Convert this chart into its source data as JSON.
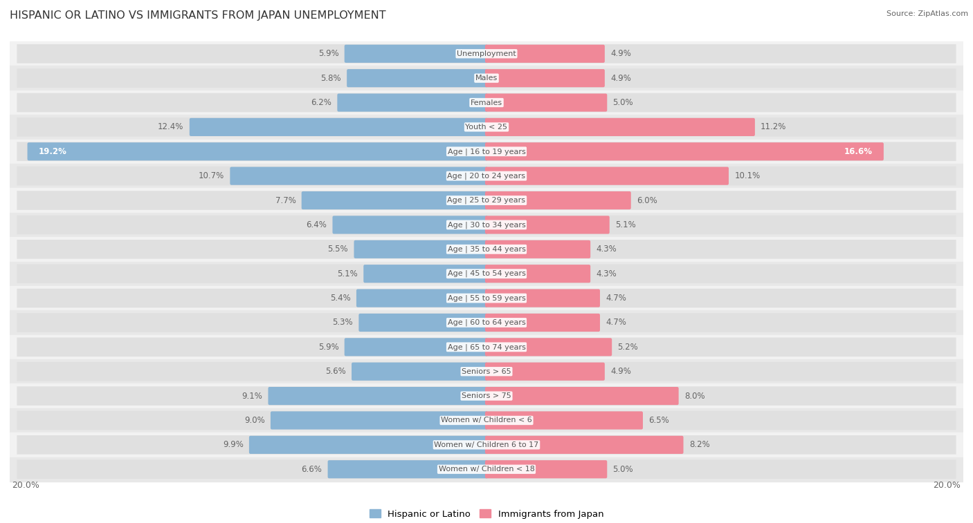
{
  "title": "HISPANIC OR LATINO VS IMMIGRANTS FROM JAPAN UNEMPLOYMENT",
  "source": "Source: ZipAtlas.com",
  "categories": [
    "Unemployment",
    "Males",
    "Females",
    "Youth < 25",
    "Age | 16 to 19 years",
    "Age | 20 to 24 years",
    "Age | 25 to 29 years",
    "Age | 30 to 34 years",
    "Age | 35 to 44 years",
    "Age | 45 to 54 years",
    "Age | 55 to 59 years",
    "Age | 60 to 64 years",
    "Age | 65 to 74 years",
    "Seniors > 65",
    "Seniors > 75",
    "Women w/ Children < 6",
    "Women w/ Children 6 to 17",
    "Women w/ Children < 18"
  ],
  "hispanic_values": [
    5.9,
    5.8,
    6.2,
    12.4,
    19.2,
    10.7,
    7.7,
    6.4,
    5.5,
    5.1,
    5.4,
    5.3,
    5.9,
    5.6,
    9.1,
    9.0,
    9.9,
    6.6
  ],
  "japan_values": [
    4.9,
    4.9,
    5.0,
    11.2,
    16.6,
    10.1,
    6.0,
    5.1,
    4.3,
    4.3,
    4.7,
    4.7,
    5.2,
    4.9,
    8.0,
    6.5,
    8.2,
    5.0
  ],
  "hispanic_color": "#8ab4d4",
  "japan_color": "#f08898",
  "row_bg_light": "#f2f2f2",
  "row_bg_dark": "#e8e8e8",
  "tube_color": "#e0e0e0",
  "axis_limit": 20.0,
  "label_color": "#666666",
  "title_color": "#333333",
  "cat_label_color": "#555555",
  "legend_hispanic": "Hispanic or Latino",
  "legend_japan": "Immigrants from Japan",
  "bar_height": 0.62,
  "value_fontsize": 8.5,
  "cat_fontsize": 8.0
}
